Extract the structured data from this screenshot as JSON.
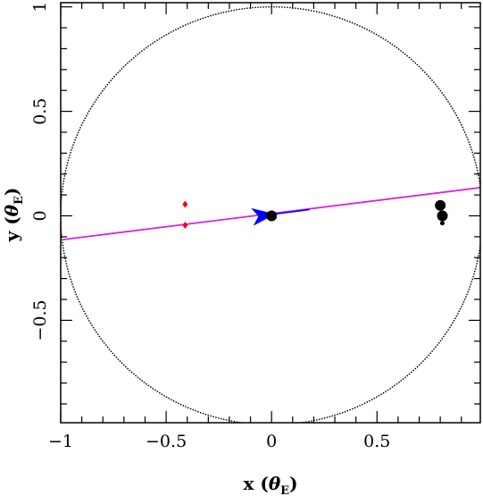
{
  "chart_data": {
    "type": "scatter",
    "xlabel": {
      "main": "x (",
      "symbol": "θ",
      "sub": "E",
      "close": ")"
    },
    "ylabel": {
      "main": "y (",
      "symbol": "θ",
      "sub": "E",
      "close": ")"
    },
    "xlim": [
      -1.0,
      0.99
    ],
    "ylim": [
      -0.99,
      1.02
    ],
    "xticks": [
      {
        "value": -1,
        "label": "−1"
      },
      {
        "value": -0.5,
        "label": "−0.5"
      },
      {
        "value": 0,
        "label": "0"
      },
      {
        "value": 0.5,
        "label": "0.5"
      }
    ],
    "yticks": [
      {
        "value": -0.5,
        "label": "−0.5"
      },
      {
        "value": 0,
        "label": "0"
      },
      {
        "value": 0.5,
        "label": "0.5"
      },
      {
        "value": 1,
        "label": "1"
      }
    ],
    "einstein_ring": {
      "center": [
        0,
        0
      ],
      "radius": 1.0,
      "style": "dotted",
      "color": "#000000"
    },
    "source_trajectory": {
      "points": [
        [
          -1.0,
          -0.115
        ],
        [
          0.99,
          0.135
        ]
      ],
      "color": "#dd22dd"
    },
    "source_motion": {
      "from": [
        -0.05,
        0.0
      ],
      "to": [
        0.18,
        0.03
      ],
      "arrow_at": [
        -0.05,
        0.0
      ],
      "color": "#0000ff"
    },
    "red_images": {
      "color": "#ff0000",
      "points": [
        [
          -0.41,
          0.055
        ],
        [
          -0.41,
          -0.045
        ]
      ]
    },
    "black_images": {
      "color": "#000000",
      "points": [
        [
          0.0,
          0.0
        ],
        [
          0.8,
          0.05
        ],
        [
          0.81,
          0.0
        ],
        [
          0.81,
          -0.035
        ]
      ],
      "sizes": [
        6,
        6,
        6,
        2.5
      ]
    },
    "grid": false,
    "legend": "none"
  }
}
